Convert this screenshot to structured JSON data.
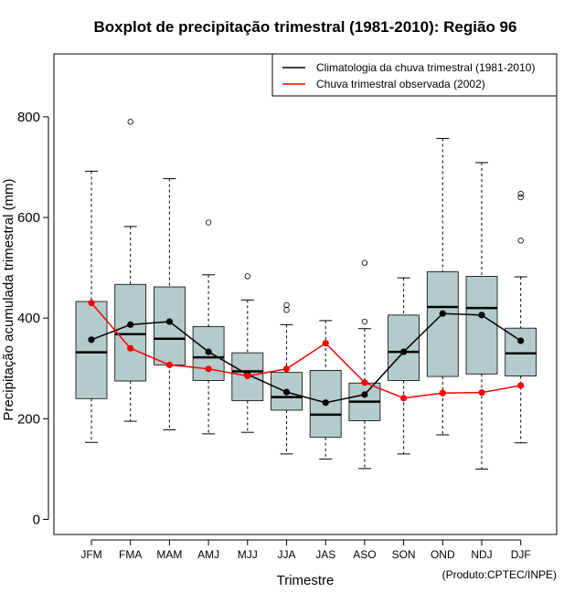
{
  "chart_data": {
    "type": "boxplot",
    "title": "Boxplot de precipitação trimestral (1981-2010): Região 96",
    "xlabel": "Trimestre",
    "ylabel": "Precipitação acumulada trimestral (mm)",
    "ylim": [
      -30,
      925
    ],
    "yticks": [
      0,
      200,
      400,
      600,
      800
    ],
    "categories": [
      "JFM",
      "FMA",
      "MAM",
      "AMJ",
      "MJJ",
      "JJA",
      "JAS",
      "ASO",
      "SON",
      "OND",
      "NDJ",
      "DJF"
    ],
    "boxes": [
      {
        "whisker_low": 153,
        "q1": 240,
        "median": 332,
        "q3": 433,
        "whisker_high": 692,
        "outliers": []
      },
      {
        "whisker_low": 195,
        "q1": 275,
        "median": 368,
        "q3": 467,
        "whisker_high": 582,
        "outliers": [
          790
        ]
      },
      {
        "whisker_low": 178,
        "q1": 307,
        "median": 359,
        "q3": 462,
        "whisker_high": 677,
        "outliers": []
      },
      {
        "whisker_low": 170,
        "q1": 276,
        "median": 322,
        "q3": 383,
        "whisker_high": 486,
        "outliers": [
          590
        ]
      },
      {
        "whisker_low": 173,
        "q1": 236,
        "median": 294,
        "q3": 331,
        "whisker_high": 436,
        "outliers": [
          483
        ]
      },
      {
        "whisker_low": 130,
        "q1": 217,
        "median": 243,
        "q3": 292,
        "whisker_high": 387,
        "outliers": [
          416,
          426
        ]
      },
      {
        "whisker_low": 120,
        "q1": 163,
        "median": 208,
        "q3": 296,
        "whisker_high": 395,
        "outliers": []
      },
      {
        "whisker_low": 101,
        "q1": 196,
        "median": 234,
        "q3": 271,
        "whisker_high": 379,
        "outliers": [
          393,
          510
        ]
      },
      {
        "whisker_low": 130,
        "q1": 276,
        "median": 333,
        "q3": 406,
        "whisker_high": 480,
        "outliers": []
      },
      {
        "whisker_low": 168,
        "q1": 284,
        "median": 422,
        "q3": 492,
        "whisker_high": 757,
        "outliers": []
      },
      {
        "whisker_low": 100,
        "q1": 289,
        "median": 420,
        "q3": 483,
        "whisker_high": 709,
        "outliers": []
      },
      {
        "whisker_low": 152,
        "q1": 285,
        "median": 330,
        "q3": 380,
        "whisker_high": 482,
        "outliers": [
          554,
          640,
          647
        ]
      }
    ],
    "series": [
      {
        "name": "Climatologia da chuva trimestral (1981-2010)",
        "color": "#000000",
        "values": [
          357,
          387,
          393,
          333,
          288,
          253,
          232,
          248,
          333,
          409,
          406,
          355
        ]
      },
      {
        "name": "Chuva trimestral observada (2002)",
        "color": "#ff0000",
        "values": [
          430,
          340,
          307,
          299,
          285,
          299,
          350,
          272,
          241,
          251,
          252,
          266
        ]
      }
    ],
    "legend_position": "top-right",
    "box_fill": "#b3cbcb",
    "credit": "(Produto:CPTEC/INPE)"
  }
}
